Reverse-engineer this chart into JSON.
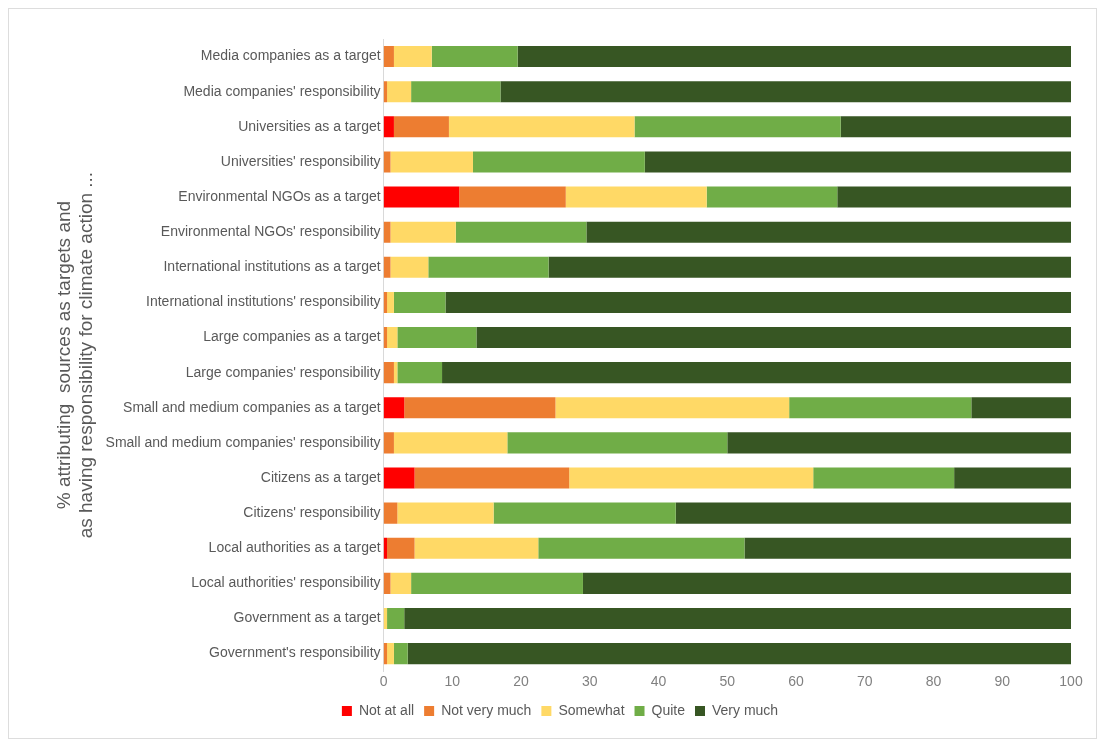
{
  "chart_data": {
    "type": "bar",
    "orientation": "horizontal",
    "stacked": true,
    "ylabel": "% attributing  sources as targets and as having responsibility for climate action ...",
    "categories": [
      "Media companies as a target",
      "Media companies' responsibility",
      "Universities as a target",
      "Universities' responsibility",
      "Environmental NGOs as a target",
      "Environmental NGOs' responsibility",
      "International institutions as a target",
      "International institutions' responsibility",
      "Large companies as a target",
      "Large companies' responsibility",
      "Small and medium companies as a target",
      "Small and medium companies' responsibility",
      "Citizens as a target",
      "Citizens' responsibility",
      "Local authorities as a target",
      "Local authorities' responsibility",
      "Government as a target",
      "Government's responsibility"
    ],
    "series": [
      {
        "name": "Not at all",
        "color": "#ff0000",
        "values": [
          0,
          0,
          1.5,
          0,
          11,
          0,
          0,
          0,
          0,
          0,
          3,
          0,
          4.5,
          0,
          0.5,
          0,
          0,
          0
        ]
      },
      {
        "name": "Not very much",
        "color": "#ed7d31",
        "values": [
          1.5,
          0.5,
          8,
          1,
          15.5,
          1,
          1,
          0.5,
          0.5,
          1.5,
          22,
          1.5,
          22.5,
          2,
          4,
          1,
          0,
          0.5
        ]
      },
      {
        "name": "Somewhat",
        "color": "#ffd966",
        "values": [
          5.5,
          3.5,
          27,
          12,
          20.5,
          9.5,
          5.5,
          1,
          1.5,
          0.5,
          34,
          16.5,
          35.5,
          14,
          18,
          3,
          0.5,
          1
        ]
      },
      {
        "name": "Quite",
        "color": "#70ad47",
        "values": [
          12.5,
          13,
          30,
          25,
          19,
          19,
          17.5,
          7.5,
          11.5,
          6.5,
          26.5,
          32,
          20.5,
          26.5,
          30,
          25,
          2.5,
          2
        ]
      },
      {
        "name": "Very much",
        "color": "#375623",
        "values": [
          80.5,
          83,
          33.5,
          62,
          34,
          70.5,
          76,
          91,
          86.5,
          91.5,
          14.5,
          50,
          17,
          57.5,
          47.5,
          71,
          97,
          96.5
        ]
      }
    ],
    "xlim": [
      0,
      100
    ],
    "xticks": [
      0,
      10,
      20,
      30,
      40,
      50,
      60,
      70,
      80,
      90,
      100
    ],
    "grid": false,
    "legend": "bottom"
  }
}
